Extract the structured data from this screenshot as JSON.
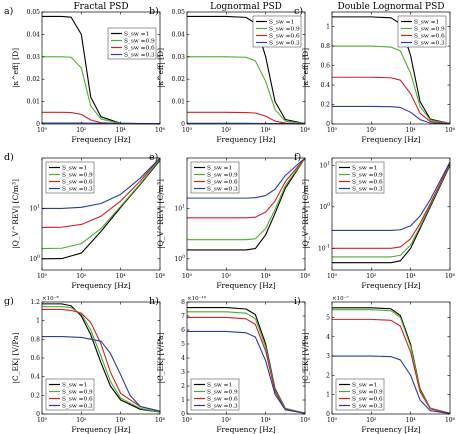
{
  "figure": {
    "xlabel": "Frequency [Hz]",
    "xticks": [
      "10⁰",
      "10²",
      "10⁴",
      "10⁶"
    ],
    "legend": [
      "S_sw =1",
      "S_sw =0.9",
      "S_sw =0.6",
      "S_sw =0.3"
    ],
    "colors": [
      "#000000",
      "#4daf2a",
      "#d1202a",
      "#2a3d9b"
    ]
  },
  "chart_data": [
    {
      "id": "a",
      "letter": "a)",
      "title": "Fractal PSD",
      "type": "line",
      "xscale": "log",
      "xlim": [
        1,
        1000000
      ],
      "yscale": "linear",
      "ylim": [
        0,
        0.05
      ],
      "yticks": [
        0,
        0.01,
        0.02,
        0.03,
        0.04,
        0.05
      ],
      "ytick_labels": [
        "0",
        "0.01",
        "0.02",
        "0.03",
        "0.04",
        "0.05"
      ],
      "ylabel": "|κ^eff| [D]",
      "exponent": "",
      "legend_position": "center-right",
      "series": [
        {
          "name": "S_sw =1",
          "x": [
            1,
            10,
            30,
            100,
            300,
            1000,
            10000,
            1000000
          ],
          "y": [
            0.048,
            0.048,
            0.0477,
            0.04,
            0.012,
            0.0032,
            0.0003,
            0.0001
          ]
        },
        {
          "name": "S_sw =0.9",
          "x": [
            1,
            10,
            30,
            100,
            300,
            1000,
            10000,
            1000000
          ],
          "y": [
            0.03,
            0.03,
            0.0298,
            0.025,
            0.008,
            0.0022,
            0.0003,
            0.0001
          ]
        },
        {
          "name": "S_sw =0.6",
          "x": [
            1,
            10,
            30,
            100,
            300,
            1000,
            10000,
            1000000
          ],
          "y": [
            0.0052,
            0.0052,
            0.0051,
            0.0043,
            0.0018,
            0.0006,
            0.0002,
            0.0001
          ]
        },
        {
          "name": "S_sw =0.3",
          "x": [
            1,
            100,
            1000,
            1000000
          ],
          "y": [
            0.0004,
            0.0004,
            0.0003,
            0.0002
          ]
        }
      ]
    },
    {
      "id": "b",
      "letter": "b)",
      "title": "Lognormal PSD",
      "type": "line",
      "xscale": "log",
      "xlim": [
        1,
        1000000
      ],
      "yscale": "linear",
      "ylim": [
        0,
        0.05
      ],
      "yticks": [
        0,
        0.01,
        0.02,
        0.03,
        0.04,
        0.05
      ],
      "ytick_labels": [
        "0",
        "0.01",
        "0.02",
        "0.03",
        "0.04",
        "0.05"
      ],
      "ylabel": "|κ^eff| [D]",
      "exponent": "",
      "legend_position": "top-right",
      "series": [
        {
          "name": "S_sw =1",
          "x": [
            1,
            100,
            1000,
            3000,
            10000,
            30000,
            100000,
            1000000
          ],
          "y": [
            0.048,
            0.048,
            0.0476,
            0.045,
            0.03,
            0.01,
            0.002,
            0.0002
          ]
        },
        {
          "name": "S_sw =0.9",
          "x": [
            1,
            100,
            1000,
            3000,
            10000,
            30000,
            100000,
            1000000
          ],
          "y": [
            0.03,
            0.03,
            0.0298,
            0.0282,
            0.019,
            0.0065,
            0.0013,
            0.0002
          ]
        },
        {
          "name": "S_sw =0.6",
          "x": [
            1,
            100,
            1000,
            3000,
            10000,
            30000,
            100000,
            1000000
          ],
          "y": [
            0.0052,
            0.0052,
            0.0051,
            0.0049,
            0.0035,
            0.0013,
            0.0004,
            0.0001
          ]
        },
        {
          "name": "S_sw =0.3",
          "x": [
            1,
            1000,
            100000,
            1000000
          ],
          "y": [
            0.0003,
            0.0003,
            0.0002,
            0.0001
          ]
        }
      ]
    },
    {
      "id": "c",
      "letter": "c)",
      "title": "Double Lognormal PSD",
      "type": "line",
      "xscale": "log",
      "xlim": [
        1,
        1000000
      ],
      "yscale": "linear",
      "ylim": [
        0,
        1.15
      ],
      "yticks": [
        0,
        0.2,
        0.4,
        0.6,
        0.8,
        1
      ],
      "ytick_labels": [
        "0",
        "0.2",
        "0.4",
        "0.6",
        "0.8",
        "1"
      ],
      "ylabel": "|κ^eff| [D]",
      "exponent": "",
      "legend_position": "top-right",
      "series": [
        {
          "name": "S_sw =1",
          "x": [
            1,
            100,
            1000,
            3000,
            10000,
            30000,
            100000,
            1000000
          ],
          "y": [
            1.1,
            1.1,
            1.09,
            1.03,
            0.7,
            0.23,
            0.05,
            0.005
          ]
        },
        {
          "name": "S_sw =0.9",
          "x": [
            1,
            100,
            1000,
            3000,
            10000,
            30000,
            100000,
            1000000
          ],
          "y": [
            0.8,
            0.8,
            0.79,
            0.75,
            0.52,
            0.18,
            0.04,
            0.005
          ]
        },
        {
          "name": "S_sw =0.6",
          "x": [
            1,
            100,
            1000,
            3000,
            10000,
            30000,
            100000,
            1000000
          ],
          "y": [
            0.48,
            0.48,
            0.475,
            0.45,
            0.31,
            0.11,
            0.025,
            0.003
          ]
        },
        {
          "name": "S_sw =0.3",
          "x": [
            1,
            100,
            1000,
            3000,
            10000,
            30000,
            100000,
            1000000
          ],
          "y": [
            0.18,
            0.18,
            0.178,
            0.17,
            0.12,
            0.045,
            0.01,
            0.002
          ]
        }
      ]
    },
    {
      "id": "d",
      "letter": "d)",
      "title": "",
      "type": "line",
      "xscale": "log",
      "xlim": [
        1,
        1000000
      ],
      "yscale": "log",
      "ylim": [
        0.6,
        100
      ],
      "yticks": [
        1,
        10
      ],
      "ytick_labels": [
        "",
        ""
      ],
      "ylabel": "|Q_V^REV| [C/m³]",
      "exponent": "",
      "legend_position": "top-left",
      "series": [
        {
          "name": "S_sw =1",
          "x": [
            1,
            10,
            100,
            1000,
            10000,
            100000,
            1000000
          ],
          "y": [
            1,
            1.01,
            1.3,
            3.5,
            10.5,
            30,
            90
          ]
        },
        {
          "name": "S_sw =0.9",
          "x": [
            1,
            10,
            100,
            1000,
            10000,
            100000,
            1000000
          ],
          "y": [
            1.6,
            1.62,
            2,
            4,
            11,
            31,
            95
          ]
        },
        {
          "name": "S_sw =0.6",
          "x": [
            1,
            10,
            100,
            1000,
            10000,
            100000,
            1000000
          ],
          "y": [
            4.2,
            4.25,
            4.8,
            7,
            14,
            35,
            100
          ]
        },
        {
          "name": "S_sw =0.3",
          "x": [
            1,
            10,
            100,
            1000,
            10000,
            100000,
            1000000
          ],
          "y": [
            10,
            10,
            10.5,
            12.5,
            19,
            40,
            110
          ]
        }
      ]
    },
    {
      "id": "e",
      "letter": "e)",
      "title": "",
      "type": "line",
      "xscale": "log",
      "xlim": [
        1,
        1000000
      ],
      "yscale": "log",
      "ylim": [
        0.6,
        100
      ],
      "yticks": [
        1,
        10
      ],
      "ytick_labels": [
        "",
        ""
      ],
      "ylabel": "|Q_V^REV| [C/m³]",
      "exponent": "",
      "legend_position": "top-left",
      "series": [
        {
          "name": "S_sw =1",
          "x": [
            1,
            1000,
            3000,
            10000,
            30000,
            100000,
            1000000
          ],
          "y": [
            1.5,
            1.5,
            1.6,
            3,
            8,
            25,
            100
          ]
        },
        {
          "name": "S_sw =0.9",
          "x": [
            1,
            1000,
            3000,
            10000,
            30000,
            100000,
            1000000
          ],
          "y": [
            2.4,
            2.4,
            2.5,
            4,
            9.5,
            28,
            105
          ]
        },
        {
          "name": "S_sw =0.6",
          "x": [
            1,
            1000,
            3000,
            10000,
            30000,
            100000,
            1000000
          ],
          "y": [
            6.5,
            6.5,
            6.7,
            8.5,
            14,
            34,
            110
          ]
        },
        {
          "name": "S_sw =0.3",
          "x": [
            1,
            1000,
            3000,
            10000,
            30000,
            100000,
            1000000
          ],
          "y": [
            16,
            16,
            16.3,
            18,
            24,
            45,
            125
          ]
        }
      ]
    },
    {
      "id": "f",
      "letter": "f)",
      "title": "",
      "type": "line",
      "xscale": "log",
      "xlim": [
        1,
        1000000
      ],
      "yscale": "log",
      "ylim": [
        0.03,
        15
      ],
      "yticks": [
        0.1,
        1,
        10
      ],
      "ytick_labels": [
        "",
        "",
        ""
      ],
      "ylabel": "|Q_V^REV| [C/m³]",
      "exponent": "",
      "legend_position": "top-left",
      "series": [
        {
          "name": "S_sw =1",
          "x": [
            1,
            1000,
            3000,
            10000,
            30000,
            100000,
            1000000
          ],
          "y": [
            0.045,
            0.045,
            0.05,
            0.1,
            0.3,
            1,
            10
          ]
        },
        {
          "name": "S_sw =0.9",
          "x": [
            1,
            1000,
            3000,
            10000,
            30000,
            100000,
            1000000
          ],
          "y": [
            0.062,
            0.062,
            0.068,
            0.12,
            0.33,
            1.1,
            10.5
          ]
        },
        {
          "name": "S_sw =0.6",
          "x": [
            1,
            1000,
            3000,
            10000,
            30000,
            100000,
            1000000
          ],
          "y": [
            0.1,
            0.1,
            0.108,
            0.17,
            0.4,
            1.2,
            11
          ]
        },
        {
          "name": "S_sw =0.3",
          "x": [
            1,
            1000,
            3000,
            10000,
            30000,
            100000,
            1000000
          ],
          "y": [
            0.27,
            0.27,
            0.28,
            0.35,
            0.6,
            1.5,
            12
          ]
        }
      ]
    },
    {
      "id": "g",
      "letter": "g)",
      "title": "",
      "type": "line",
      "xscale": "log",
      "xlim": [
        1,
        1000000
      ],
      "yscale": "linear",
      "ylim": [
        0,
        1.2
      ],
      "yticks": [
        0,
        0.2,
        0.4,
        0.6,
        0.8,
        1,
        1.2
      ],
      "ytick_labels": [
        "0",
        "0.2",
        "0.4",
        "0.6",
        "0.8",
        "1",
        "1.2"
      ],
      "ylabel": "|C_EK| [V/Pa]",
      "exponent": "×10⁻⁸",
      "legend_position": "bottom-left",
      "series": [
        {
          "name": "S_sw =1",
          "x": [
            1,
            10,
            30,
            100,
            300,
            1000,
            3000,
            10000,
            100000,
            1000000
          ],
          "y": [
            1.18,
            1.18,
            1.16,
            1.05,
            0.85,
            0.55,
            0.3,
            0.15,
            0.05,
            0.02
          ]
        },
        {
          "name": "S_sw =0.9",
          "x": [
            1,
            10,
            30,
            100,
            300,
            1000,
            3000,
            10000,
            100000,
            1000000
          ],
          "y": [
            1.15,
            1.15,
            1.14,
            1.07,
            0.9,
            0.62,
            0.35,
            0.17,
            0.06,
            0.02
          ]
        },
        {
          "name": "S_sw =0.6",
          "x": [
            1,
            10,
            30,
            100,
            300,
            1000,
            3000,
            10000,
            100000,
            1000000
          ],
          "y": [
            1.12,
            1.12,
            1.11,
            1.08,
            0.98,
            0.75,
            0.45,
            0.22,
            0.08,
            0.03
          ]
        },
        {
          "name": "S_sw =0.3",
          "x": [
            1,
            10,
            100,
            1000,
            3000,
            10000,
            30000,
            100000,
            1000000
          ],
          "y": [
            0.83,
            0.83,
            0.82,
            0.78,
            0.65,
            0.42,
            0.2,
            0.08,
            0.03
          ]
        }
      ]
    },
    {
      "id": "h",
      "letter": "h)",
      "title": "",
      "type": "line",
      "xscale": "log",
      "xlim": [
        1,
        1000000
      ],
      "yscale": "linear",
      "ylim": [
        0,
        8
      ],
      "yticks": [
        0,
        1,
        2,
        3,
        4,
        5,
        6,
        7,
        8
      ],
      "ytick_labels": [
        "0",
        "1",
        "2",
        "3",
        "4",
        "5",
        "6",
        "7",
        "8"
      ],
      "ylabel": "|C_EK| [V/Pa]",
      "exponent": "×10⁻¹⁰",
      "legend_position": "bottom-left",
      "series": [
        {
          "name": "S_sw =1",
          "x": [
            1,
            100,
            1000,
            3000,
            10000,
            30000,
            100000,
            1000000
          ],
          "y": [
            7.6,
            7.6,
            7.5,
            7.1,
            5,
            1.8,
            0.4,
            0.05
          ]
        },
        {
          "name": "S_sw =0.9",
          "x": [
            1,
            100,
            1000,
            3000,
            10000,
            30000,
            100000,
            1000000
          ],
          "y": [
            7.3,
            7.3,
            7.2,
            6.8,
            4.8,
            1.7,
            0.4,
            0.05
          ]
        },
        {
          "name": "S_sw =0.6",
          "x": [
            1,
            100,
            1000,
            3000,
            10000,
            30000,
            100000,
            1000000
          ],
          "y": [
            6.9,
            6.9,
            6.8,
            6.4,
            4.5,
            1.6,
            0.35,
            0.05
          ]
        },
        {
          "name": "S_sw =0.3",
          "x": [
            1,
            100,
            1000,
            3000,
            10000,
            30000,
            100000,
            1000000
          ],
          "y": [
            5.9,
            5.9,
            5.8,
            5.5,
            3.8,
            1.4,
            0.3,
            0.05
          ]
        }
      ]
    },
    {
      "id": "i",
      "letter": "i)",
      "title": "",
      "type": "line",
      "xscale": "log",
      "xlim": [
        1,
        1000000
      ],
      "yscale": "linear",
      "ylim": [
        0,
        5.8
      ],
      "yticks": [
        0,
        1,
        2,
        3,
        4,
        5
      ],
      "ytick_labels": [
        "0",
        "1",
        "2",
        "3",
        "4",
        "5"
      ],
      "ylabel": "|C_EK| [V/Pa]",
      "exponent": "×10⁻⁷",
      "legend_position": "bottom-left",
      "series": [
        {
          "name": "S_sw =1",
          "x": [
            1,
            100,
            1000,
            3000,
            10000,
            30000,
            100000,
            1000000
          ],
          "y": [
            5.5,
            5.5,
            5.45,
            5.1,
            3.6,
            1.3,
            0.3,
            0.03
          ]
        },
        {
          "name": "S_sw =0.9",
          "x": [
            1,
            100,
            1000,
            3000,
            10000,
            30000,
            100000,
            1000000
          ],
          "y": [
            5.4,
            5.4,
            5.35,
            5.0,
            3.5,
            1.25,
            0.3,
            0.03
          ]
        },
        {
          "name": "S_sw =0.6",
          "x": [
            1,
            100,
            1000,
            3000,
            10000,
            30000,
            100000,
            1000000
          ],
          "y": [
            4.9,
            4.9,
            4.85,
            4.55,
            3.2,
            1.15,
            0.27,
            0.03
          ]
        },
        {
          "name": "S_sw =0.3",
          "x": [
            1,
            100,
            1000,
            3000,
            10000,
            30000,
            100000,
            1000000
          ],
          "y": [
            3.0,
            3.0,
            2.97,
            2.8,
            2.0,
            0.72,
            0.17,
            0.02
          ]
        }
      ]
    }
  ]
}
